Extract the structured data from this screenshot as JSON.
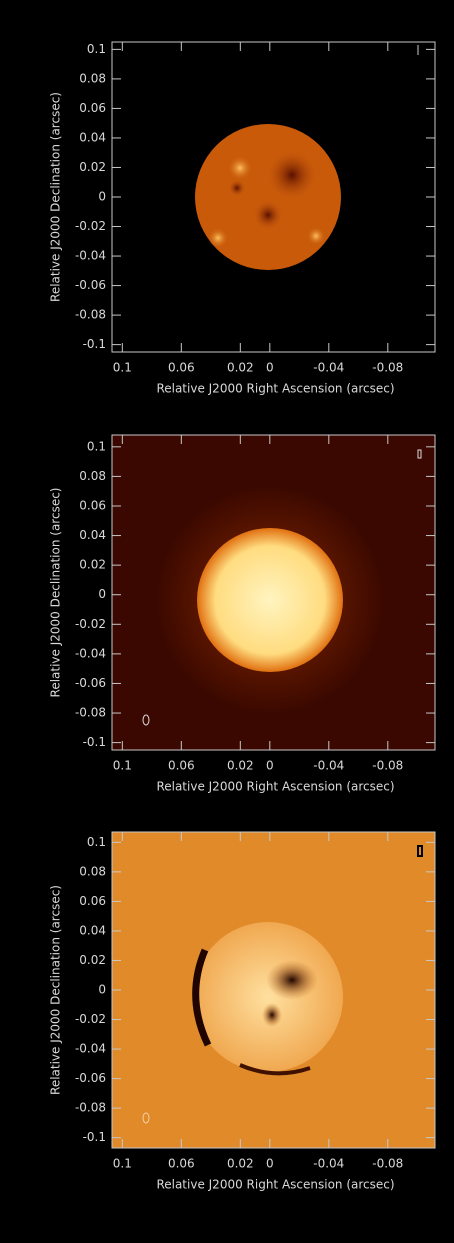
{
  "chart_data": [
    {
      "type": "image",
      "x_label": "Relative J2000 Right Ascension (arcsec)",
      "y_label": "Relative J2000 Declination (arcsec)",
      "xlim": [
        0.107,
        -0.112
      ],
      "ylim": [
        -0.105,
        0.105
      ],
      "xticks": [
        0.1,
        0.06,
        0.02,
        0,
        -0.04,
        -0.08
      ],
      "yticks": [
        0.1,
        0.08,
        0.06,
        0.04,
        0.02,
        0,
        -0.02,
        -0.04,
        -0.06,
        -0.08,
        -0.1
      ]
    },
    {
      "type": "image",
      "x_label": "Relative J2000 Right Ascension (arcsec)",
      "y_label": "Relative J2000 Declination (arcsec)",
      "xlim": [
        0.107,
        -0.112
      ],
      "ylim": [
        -0.105,
        0.108
      ],
      "xticks": [
        0.1,
        0.06,
        0.02,
        0,
        -0.04,
        -0.08
      ],
      "yticks": [
        0.1,
        0.08,
        0.06,
        0.04,
        0.02,
        0,
        -0.02,
        -0.04,
        -0.06,
        -0.08,
        -0.1
      ]
    },
    {
      "type": "image",
      "x_label": "Relative J2000 Right Ascension (arcsec)",
      "y_label": "Relative J2000 Declination (arcsec)",
      "xlim": [
        0.107,
        -0.112
      ],
      "ylim": [
        -0.107,
        0.107
      ],
      "xticks": [
        0.1,
        0.06,
        0.02,
        0,
        -0.04,
        -0.08
      ],
      "yticks": [
        0.1,
        0.08,
        0.06,
        0.04,
        0.02,
        0,
        -0.02,
        -0.04,
        -0.06,
        -0.08,
        -0.1
      ]
    }
  ]
}
